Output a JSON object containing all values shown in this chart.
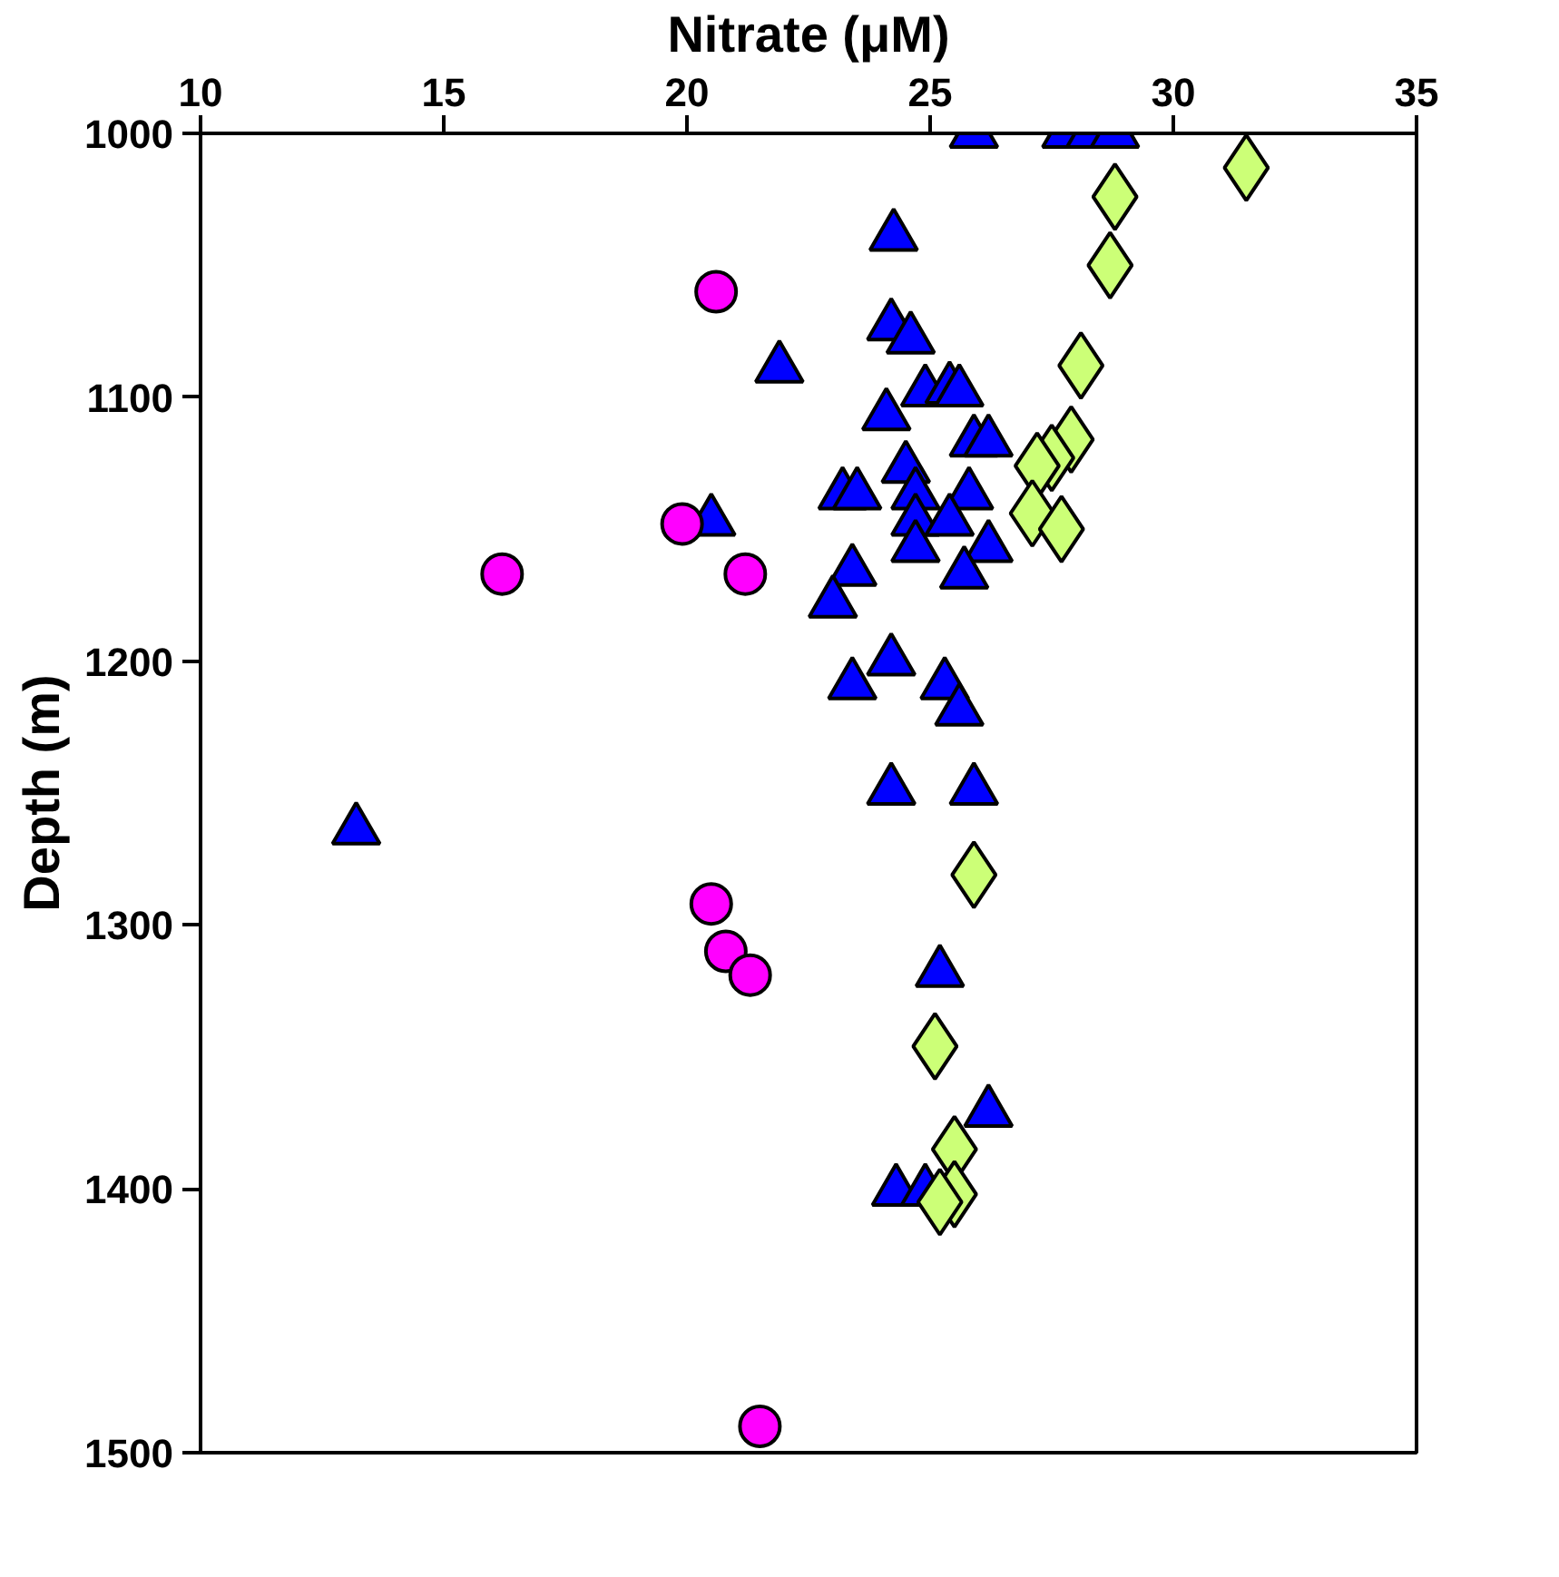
{
  "chart_data": {
    "type": "scatter",
    "xlabel": "Nitrate (μM)",
    "ylabel": "Depth (m)",
    "xlim": [
      10,
      35
    ],
    "xticks": [
      10,
      15,
      20,
      25,
      30,
      35
    ],
    "ylim": [
      1500,
      1000
    ],
    "yticks": [
      1000,
      1100,
      1200,
      1300,
      1400,
      1500
    ],
    "grid": false,
    "series": [
      {
        "color": "#0000ff",
        "marker": "triangle",
        "x": [
          25.9,
          27.8,
          28.3,
          28.8,
          24.25,
          24.2,
          24.6,
          21.9,
          24.9,
          25.4,
          25.6,
          24.1,
          25.9,
          26.2,
          24.5,
          23.2,
          23.5,
          24.7,
          25.8,
          24.7,
          25.4,
          20.5,
          24.7,
          26.2,
          23.4,
          25.7,
          23.0,
          24.2,
          23.4,
          25.3,
          25.6,
          24.2,
          25.9,
          13.2,
          25.2,
          26.2,
          24.3,
          24.9
        ],
        "values": [
          1000,
          1000,
          1000,
          1000,
          1039,
          1073,
          1078,
          1089,
          1098,
          1097,
          1098,
          1107,
          1117,
          1117,
          1127,
          1137,
          1137,
          1137,
          1137,
          1147,
          1147,
          1147,
          1157,
          1157,
          1166,
          1167,
          1178,
          1200,
          1209,
          1209,
          1219,
          1249,
          1249,
          1264,
          1318,
          1371,
          1401,
          1401
        ]
      },
      {
        "color": "#ccff77",
        "marker": "diamond",
        "x": [
          31.5,
          28.8,
          28.7,
          28.1,
          27.9,
          27.5,
          27.2,
          27.1,
          27.7,
          25.9,
          25.1,
          25.5,
          25.5,
          25.2
        ],
        "values": [
          1013,
          1024,
          1050,
          1088,
          1116,
          1123,
          1126,
          1144,
          1150,
          1281,
          1346,
          1385,
          1402,
          1405
        ]
      },
      {
        "color": "#ff00ff",
        "marker": "circle",
        "x": [
          20.6,
          19.9,
          16.2,
          21.2,
          20.5,
          20.8,
          21.3,
          21.5
        ],
        "values": [
          1060,
          1148,
          1167,
          1167,
          1292,
          1310,
          1319,
          1490
        ]
      }
    ]
  }
}
